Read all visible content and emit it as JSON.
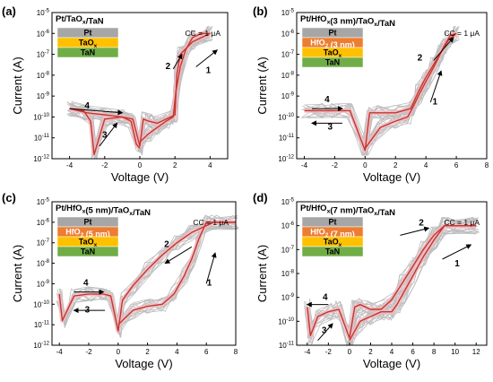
{
  "colors": {
    "gray_curves": "#bdbdbd",
    "pink_band": "#f6b8c4",
    "median_curve": "#c0392b",
    "layer_pt": "#a6a6a6",
    "layer_hfo2": "#ed7d31",
    "layer_taox": "#ffc000",
    "layer_tan": "#70ad47"
  },
  "chart_data": [
    {
      "panel_label": "(a)",
      "type": "line",
      "title": "Pt/TaOx/TaN",
      "cc_label": "CC = 1 μA",
      "xlabel": "Voltage (V)",
      "ylabel": "Current (A)",
      "xlim": [
        -5,
        5
      ],
      "x_ticks": [
        "-4",
        "-2",
        "0",
        "2",
        "4"
      ],
      "x_tick_values": [
        -4,
        -2,
        0,
        2,
        4
      ],
      "ylim_exp": [
        -12,
        -5
      ],
      "y_ticks": [
        "10-12",
        "10-11",
        "10-10",
        "10-9",
        "10-8",
        "10-7",
        "10-6",
        "10-5"
      ],
      "stack_layers": [
        {
          "name": "Pt",
          "color": "#a6a6a6"
        },
        {
          "name": "TaOx",
          "color": "#ffc000"
        },
        {
          "name": "TaN",
          "color": "#70ad47"
        }
      ],
      "step_labels": [
        "1",
        "2",
        "3",
        "4"
      ],
      "set_branch": {
        "x": [
          0.0,
          0.5,
          1.0,
          1.5,
          1.9,
          2.05,
          2.3,
          2.6,
          3.0,
          3.5,
          4.0
        ],
        "log_y": [
          -11.2,
          -10.8,
          -10.5,
          -10.2,
          -10.0,
          -8.8,
          -7.6,
          -6.8,
          -6.2,
          -6.0,
          -6.0
        ]
      },
      "reset_branch": {
        "x": [
          4.0,
          3.0,
          2.3,
          2.1,
          2.0,
          1.0,
          0.5,
          0.2,
          0.0,
          -0.4,
          -1.0,
          -2.0,
          -2.6,
          -2.8,
          -3.2,
          -4.0
        ],
        "log_y": [
          -6.0,
          -6.4,
          -7.0,
          -8.0,
          -9.9,
          -10.3,
          -10.2,
          -10.1,
          -11.4,
          -10.1,
          -10.0,
          -10.1,
          -11.8,
          -10.2,
          -9.7,
          -9.6
        ]
      },
      "return_branch": {
        "x": [
          -4.0,
          -3.0,
          -2.0,
          -1.0,
          -0.5,
          -0.2,
          0.0
        ],
        "log_y": [
          -9.6,
          -9.8,
          -9.9,
          -10.0,
          -10.2,
          -11.3,
          -11.5
        ]
      }
    },
    {
      "panel_label": "(b)",
      "type": "line",
      "title": "Pt/HfOx(3 nm)/TaOx/TaN",
      "cc_label": "CC = 1 μA",
      "xlabel": "Voltage (V)",
      "ylabel": "Current (A)",
      "xlim": [
        -4.5,
        8
      ],
      "x_ticks": [
        "-4",
        "-2",
        "0",
        "2",
        "4",
        "6",
        "8"
      ],
      "x_tick_values": [
        -4,
        -2,
        0,
        2,
        4,
        6,
        8
      ],
      "ylim_exp": [
        -12,
        -5
      ],
      "y_ticks": [
        "10-12",
        "10-11",
        "10-10",
        "10-9",
        "10-8",
        "10-7",
        "10-6",
        "10-5"
      ],
      "stack_layers": [
        {
          "name": "Pt",
          "color": "#a6a6a6"
        },
        {
          "name": "HfO2 (3 nm)",
          "color": "#ed7d31"
        },
        {
          "name": "TaOx",
          "color": "#ffc000"
        },
        {
          "name": "TaN",
          "color": "#70ad47"
        }
      ],
      "step_labels": [
        "1",
        "2",
        "3",
        "4"
      ],
      "set_branch": {
        "x": [
          0.0,
          1.0,
          2.0,
          2.8,
          3.1,
          3.5,
          4.0,
          4.6,
          5.2,
          5.6,
          6.0
        ],
        "log_y": [
          -11.5,
          -10.5,
          -10.2,
          -10.0,
          -9.6,
          -9.0,
          -8.3,
          -7.5,
          -6.6,
          -6.1,
          -6.0
        ]
      },
      "reset_branch": {
        "x": [
          6.0,
          5.5,
          5.0,
          4.5,
          4.0,
          3.5,
          3.0,
          2.0,
          1.0,
          0.3,
          0.0,
          -1.0,
          -2.0,
          -3.0,
          -4.0
        ],
        "log_y": [
          -6.0,
          -6.3,
          -6.9,
          -7.5,
          -8.1,
          -8.8,
          -9.6,
          -9.8,
          -9.8,
          -9.8,
          -11.6,
          -9.7,
          -9.7,
          -9.7,
          -9.7
        ]
      }
    },
    {
      "panel_label": "(c)",
      "type": "line",
      "title": "Pt/HfOx(5 nm)/TaOx/TaN",
      "cc_label": "CC = 1 μA",
      "xlabel": "Voltage (V)",
      "ylabel": "Current (A)",
      "xlim": [
        -4.5,
        8
      ],
      "x_ticks": [
        "-4",
        "-2",
        "0",
        "2",
        "4",
        "6",
        "8"
      ],
      "x_tick_values": [
        -4,
        -2,
        0,
        2,
        4,
        6,
        8
      ],
      "ylim_exp": [
        -12,
        -5
      ],
      "y_ticks": [
        "10-12",
        "10-11",
        "10-10",
        "10-9",
        "10-8",
        "10-7",
        "10-6",
        "10-5"
      ],
      "stack_layers": [
        {
          "name": "Pt",
          "color": "#a6a6a6"
        },
        {
          "name": "HfO2 (5 nm)",
          "color": "#ed7d31"
        },
        {
          "name": "TaOx",
          "color": "#ffc000"
        },
        {
          "name": "TaN",
          "color": "#70ad47"
        }
      ],
      "step_labels": [
        "1",
        "2",
        "3",
        "4"
      ],
      "set_branch": {
        "x": [
          0.0,
          1.0,
          2.0,
          3.0,
          3.8,
          4.5,
          5.0,
          5.5,
          6.0,
          8.0
        ],
        "log_y": [
          -11.0,
          -10.3,
          -10.1,
          -10.0,
          -9.5,
          -8.6,
          -7.8,
          -6.8,
          -6.0,
          -6.0
        ]
      },
      "reset_branch": {
        "x": [
          8.0,
          6.5,
          5.0,
          4.0,
          3.0,
          2.0,
          1.0,
          0.3,
          0.0,
          -0.5,
          -1.0,
          -2.0,
          -3.0,
          -3.8,
          -4.0
        ],
        "log_y": [
          -6.0,
          -6.0,
          -6.5,
          -7.0,
          -7.6,
          -8.3,
          -9.1,
          -9.8,
          -11.3,
          -9.6,
          -9.5,
          -9.5,
          -9.6,
          -10.8,
          -9.5
        ]
      }
    },
    {
      "panel_label": "(d)",
      "type": "line",
      "title": "Pt/HfOx(7 nm)/TaOx/TaN",
      "cc_label": "CC = 1 μA",
      "xlabel": "Voltage (V)",
      "ylabel": "Current (A)",
      "xlim": [
        -5,
        13
      ],
      "x_ticks": [
        "-4",
        "-2",
        "0",
        "2",
        "4",
        "6",
        "8",
        "10",
        "12"
      ],
      "x_tick_values": [
        -4,
        -2,
        0,
        2,
        4,
        6,
        8,
        10,
        12
      ],
      "ylim_exp": [
        -11,
        -5
      ],
      "y_ticks": [
        "10-11",
        "10-10",
        "10-9",
        "10-8",
        "10-7",
        "10-6",
        "10-5"
      ],
      "stack_layers": [
        {
          "name": "Pt",
          "color": "#a6a6a6"
        },
        {
          "name": "HfO2 (7 nm)",
          "color": "#ed7d31"
        },
        {
          "name": "TaOx",
          "color": "#ffc000"
        },
        {
          "name": "TaN",
          "color": "#70ad47"
        }
      ],
      "step_labels": [
        "1",
        "2",
        "3",
        "4"
      ],
      "set_branch": {
        "x": [
          0.0,
          1.0,
          2.0,
          3.0,
          4.0,
          4.5,
          5.0,
          6.0,
          7.0,
          8.0,
          9.0,
          12.0
        ],
        "log_y": [
          -10.8,
          -10.0,
          -9.8,
          -9.6,
          -9.6,
          -9.3,
          -8.9,
          -8.1,
          -7.3,
          -6.6,
          -6.0,
          -6.0
        ]
      },
      "reset_branch": {
        "x": [
          12.0,
          9.0,
          8.0,
          7.0,
          6.0,
          5.0,
          4.0,
          3.0,
          2.0,
          1.0,
          0.5,
          0.0,
          -1.0,
          -2.0,
          -3.0,
          -3.7,
          -4.0
        ],
        "log_y": [
          -6.0,
          -6.0,
          -6.4,
          -7.0,
          -7.7,
          -8.4,
          -9.1,
          -9.5,
          -9.5,
          -9.3,
          -9.4,
          -10.7,
          -9.5,
          -9.6,
          -9.8,
          -10.6,
          -9.4
        ]
      }
    }
  ]
}
